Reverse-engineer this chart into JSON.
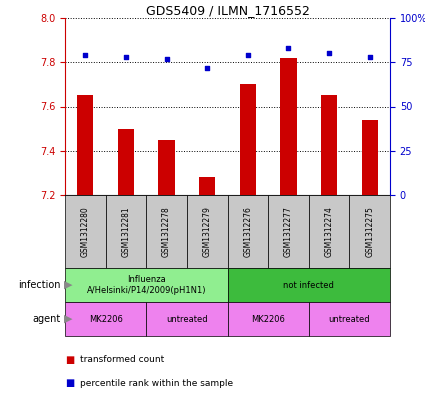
{
  "title": "GDS5409 / ILMN_1716552",
  "samples": [
    "GSM1312280",
    "GSM1312281",
    "GSM1312278",
    "GSM1312279",
    "GSM1312276",
    "GSM1312277",
    "GSM1312274",
    "GSM1312275"
  ],
  "transformed_counts": [
    7.65,
    7.5,
    7.45,
    7.28,
    7.7,
    7.82,
    7.65,
    7.54
  ],
  "percentile_ranks": [
    79,
    78,
    77,
    72,
    79,
    83,
    80,
    78
  ],
  "ylim_left": [
    7.2,
    8.0
  ],
  "ylim_right": [
    0,
    100
  ],
  "yticks_left": [
    7.2,
    7.4,
    7.6,
    7.8,
    8.0
  ],
  "yticks_right": [
    0,
    25,
    50,
    75,
    100
  ],
  "bar_color": "#cc0000",
  "dot_color": "#0000cc",
  "infection_labels": [
    {
      "text": "Influenza\nA/Helsinki/P14/2009(pH1N1)",
      "start": 0,
      "end": 4,
      "color": "#90ee90"
    },
    {
      "text": "not infected",
      "start": 4,
      "end": 8,
      "color": "#3dbb3d"
    }
  ],
  "agent_labels": [
    {
      "text": "MK2206",
      "start": 0,
      "end": 2,
      "color": "#ee82ee"
    },
    {
      "text": "untreated",
      "start": 2,
      "end": 4,
      "color": "#ee82ee"
    },
    {
      "text": "MK2206",
      "start": 4,
      "end": 6,
      "color": "#ee82ee"
    },
    {
      "text": "untreated",
      "start": 6,
      "end": 8,
      "color": "#ee82ee"
    }
  ],
  "legend_red_label": "transformed count",
  "legend_blue_label": "percentile rank within the sample",
  "infection_row_label": "infection",
  "agent_row_label": "agent",
  "left_axis_color": "#cc0000",
  "right_axis_color": "#0000cc",
  "sample_box_color": "#c8c8c8",
  "bar_width": 0.4
}
